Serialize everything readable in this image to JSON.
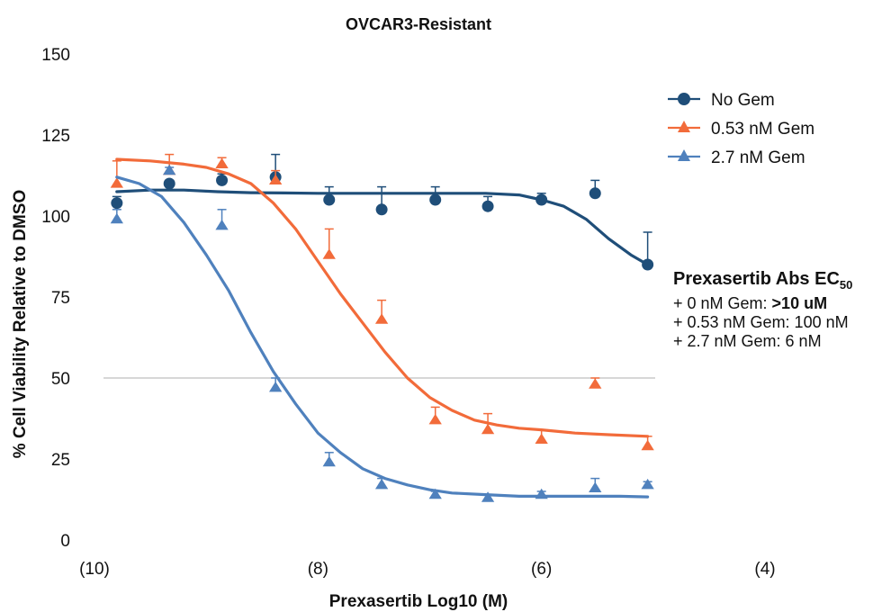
{
  "chart_data": {
    "type": "scatter",
    "title": "OVCAR3-Resistant",
    "xlabel": "Prexasertib Log10 (M)",
    "ylabel": "% Cell Viability Relative to DMSO",
    "xlim": [
      -10,
      -4
    ],
    "ylim": [
      0,
      150
    ],
    "x_ticks": [
      -10,
      -8,
      -6,
      -4
    ],
    "x_tick_labels": [
      "(10)",
      "(8)",
      "(6)",
      "(4)"
    ],
    "y_ticks": [
      0,
      25,
      50,
      75,
      100,
      125,
      150
    ],
    "y_tick_labels": [
      "0",
      "25",
      "50",
      "75",
      "100",
      "125",
      "150"
    ],
    "reference_line_y": 50,
    "grid": false,
    "legend_position": "top-right",
    "series": [
      {
        "name": "No Gem",
        "color": "#1f4e79",
        "marker": "circle",
        "x": [
          -9.8,
          -9.33,
          -8.86,
          -8.38,
          -7.9,
          -7.43,
          -6.95,
          -6.48,
          -6.0,
          -5.52,
          -5.05
        ],
        "y": [
          104,
          110,
          111,
          112,
          105,
          102,
          105,
          103,
          105,
          107,
          85
        ],
        "error": [
          2,
          1,
          2,
          7,
          4,
          7,
          4,
          3,
          2,
          4,
          10
        ],
        "fit": [
          [
            -9.8,
            107.5
          ],
          [
            -9.5,
            108
          ],
          [
            -9.2,
            108
          ],
          [
            -8.9,
            107.5
          ],
          [
            -8.6,
            107.2
          ],
          [
            -8.3,
            107.1
          ],
          [
            -8.0,
            107
          ],
          [
            -7.5,
            107
          ],
          [
            -7.0,
            107
          ],
          [
            -6.5,
            107
          ],
          [
            -6.2,
            106.5
          ],
          [
            -6.0,
            105
          ],
          [
            -5.8,
            103
          ],
          [
            -5.6,
            99
          ],
          [
            -5.4,
            93
          ],
          [
            -5.2,
            88
          ],
          [
            -5.05,
            85
          ]
        ]
      },
      {
        "name": "0.53 nM Gem",
        "color": "#f26b3a",
        "marker": "triangle",
        "x": [
          -9.8,
          -9.33,
          -8.86,
          -8.38,
          -7.9,
          -7.43,
          -6.95,
          -6.48,
          -6.0,
          -5.52,
          -5.05
        ],
        "y": [
          110,
          114,
          116,
          111,
          88,
          68,
          37,
          34,
          31,
          48,
          29
        ],
        "error": [
          7,
          5,
          2,
          3,
          8,
          6,
          4,
          5,
          3,
          2,
          3
        ],
        "fit": [
          [
            -9.8,
            117.5
          ],
          [
            -9.5,
            117
          ],
          [
            -9.2,
            116
          ],
          [
            -9.0,
            115
          ],
          [
            -8.8,
            113
          ],
          [
            -8.6,
            110
          ],
          [
            -8.4,
            104
          ],
          [
            -8.2,
            96
          ],
          [
            -8.0,
            86
          ],
          [
            -7.8,
            76
          ],
          [
            -7.6,
            67
          ],
          [
            -7.4,
            58
          ],
          [
            -7.2,
            50
          ],
          [
            -7.0,
            44
          ],
          [
            -6.8,
            40
          ],
          [
            -6.6,
            37
          ],
          [
            -6.4,
            35.5
          ],
          [
            -6.2,
            34.5
          ],
          [
            -6.0,
            34
          ],
          [
            -5.7,
            33
          ],
          [
            -5.4,
            32.5
          ],
          [
            -5.05,
            32
          ]
        ]
      },
      {
        "name": "2.7 nM Gem",
        "color": "#4f81bd",
        "marker": "triangle",
        "x": [
          -9.8,
          -9.33,
          -8.86,
          -8.38,
          -7.9,
          -7.43,
          -6.95,
          -6.48,
          -6.0,
          -5.52,
          -5.05
        ],
        "y": [
          99,
          114,
          97,
          47,
          24,
          17,
          14,
          13,
          14,
          16,
          17
        ],
        "error": [
          3,
          1,
          5,
          3,
          3,
          2,
          1,
          1,
          1,
          3,
          1
        ],
        "fit": [
          [
            -9.8,
            112
          ],
          [
            -9.6,
            110
          ],
          [
            -9.4,
            106
          ],
          [
            -9.2,
            98
          ],
          [
            -9.0,
            88
          ],
          [
            -8.8,
            77
          ],
          [
            -8.6,
            64
          ],
          [
            -8.4,
            52
          ],
          [
            -8.2,
            42
          ],
          [
            -8.0,
            33
          ],
          [
            -7.8,
            27
          ],
          [
            -7.6,
            22
          ],
          [
            -7.4,
            19
          ],
          [
            -7.2,
            17
          ],
          [
            -7.0,
            15.5
          ],
          [
            -6.8,
            14.5
          ],
          [
            -6.5,
            14
          ],
          [
            -6.2,
            13.5
          ],
          [
            -6.0,
            13.5
          ],
          [
            -5.6,
            13.5
          ],
          [
            -5.3,
            13.5
          ],
          [
            -5.05,
            13.3
          ]
        ]
      }
    ]
  },
  "annotation": {
    "title_main": "Prexasertib Abs EC",
    "title_sub": "50",
    "line1_prefix": "+ 0 nM Gem: ",
    "line1_bold": ">10 uM",
    "line2": "+ 0.53 nM Gem: 100 nM",
    "line3": "+ 2.7 nM Gem: 6 nM"
  }
}
